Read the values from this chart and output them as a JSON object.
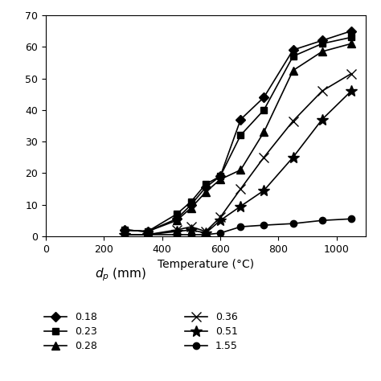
{
  "xlabel": "Temperature (°C)",
  "xlim": [
    0,
    1100
  ],
  "ylim": [
    0,
    70
  ],
  "xticks": [
    0,
    200,
    400,
    600,
    800,
    1000
  ],
  "yticks": [
    0,
    10,
    20,
    30,
    40,
    50,
    60,
    70
  ],
  "legend_title": "$d_p$ (mm)",
  "series": [
    {
      "label": "0.18",
      "marker": "D",
      "markersize": 6,
      "x": [
        270,
        350,
        450,
        500,
        550,
        600,
        670,
        750,
        850,
        950,
        1050
      ],
      "y": [
        2.0,
        1.5,
        5.5,
        10.0,
        15.5,
        19.0,
        37.0,
        44.0,
        59.0,
        62.0,
        65.0
      ]
    },
    {
      "label": "0.23",
      "marker": "s",
      "markersize": 6,
      "x": [
        270,
        350,
        450,
        500,
        550,
        600,
        670,
        750,
        850,
        950,
        1050
      ],
      "y": [
        2.0,
        1.5,
        7.0,
        11.0,
        16.5,
        19.0,
        32.0,
        40.0,
        57.0,
        61.0,
        63.0
      ]
    },
    {
      "label": "0.28",
      "marker": "^",
      "markersize": 7,
      "x": [
        270,
        350,
        450,
        500,
        550,
        600,
        670,
        750,
        850,
        950,
        1050
      ],
      "y": [
        2.0,
        1.5,
        5.0,
        9.0,
        14.0,
        18.0,
        21.0,
        33.0,
        52.5,
        58.5,
        61.0
      ]
    },
    {
      "label": "0.36",
      "marker": "x",
      "markersize": 8,
      "x": [
        270,
        350,
        450,
        500,
        550,
        600,
        670,
        750,
        850,
        950,
        1050
      ],
      "y": [
        0.5,
        0.5,
        2.0,
        3.0,
        1.5,
        6.0,
        15.0,
        25.0,
        36.5,
        46.0,
        51.5
      ]
    },
    {
      "label": "0.51",
      "marker": "*",
      "markersize": 10,
      "x": [
        270,
        350,
        450,
        500,
        550,
        600,
        670,
        750,
        850,
        950,
        1050
      ],
      "y": [
        0.5,
        0.5,
        1.5,
        2.0,
        1.0,
        5.0,
        9.5,
        14.5,
        25.0,
        37.0,
        46.0
      ]
    },
    {
      "label": "1.55",
      "marker": "o",
      "markersize": 6,
      "x": [
        270,
        350,
        450,
        500,
        550,
        600,
        670,
        750,
        850,
        950,
        1050
      ],
      "y": [
        0.5,
        0.5,
        0.5,
        0.5,
        0.5,
        1.0,
        3.0,
        3.5,
        4.0,
        5.0,
        5.5
      ]
    }
  ],
  "color": "#000000",
  "background_color": "#ffffff",
  "legend_fontsize": 9,
  "axis_fontsize": 10,
  "tick_fontsize": 9,
  "linewidth": 1.2
}
